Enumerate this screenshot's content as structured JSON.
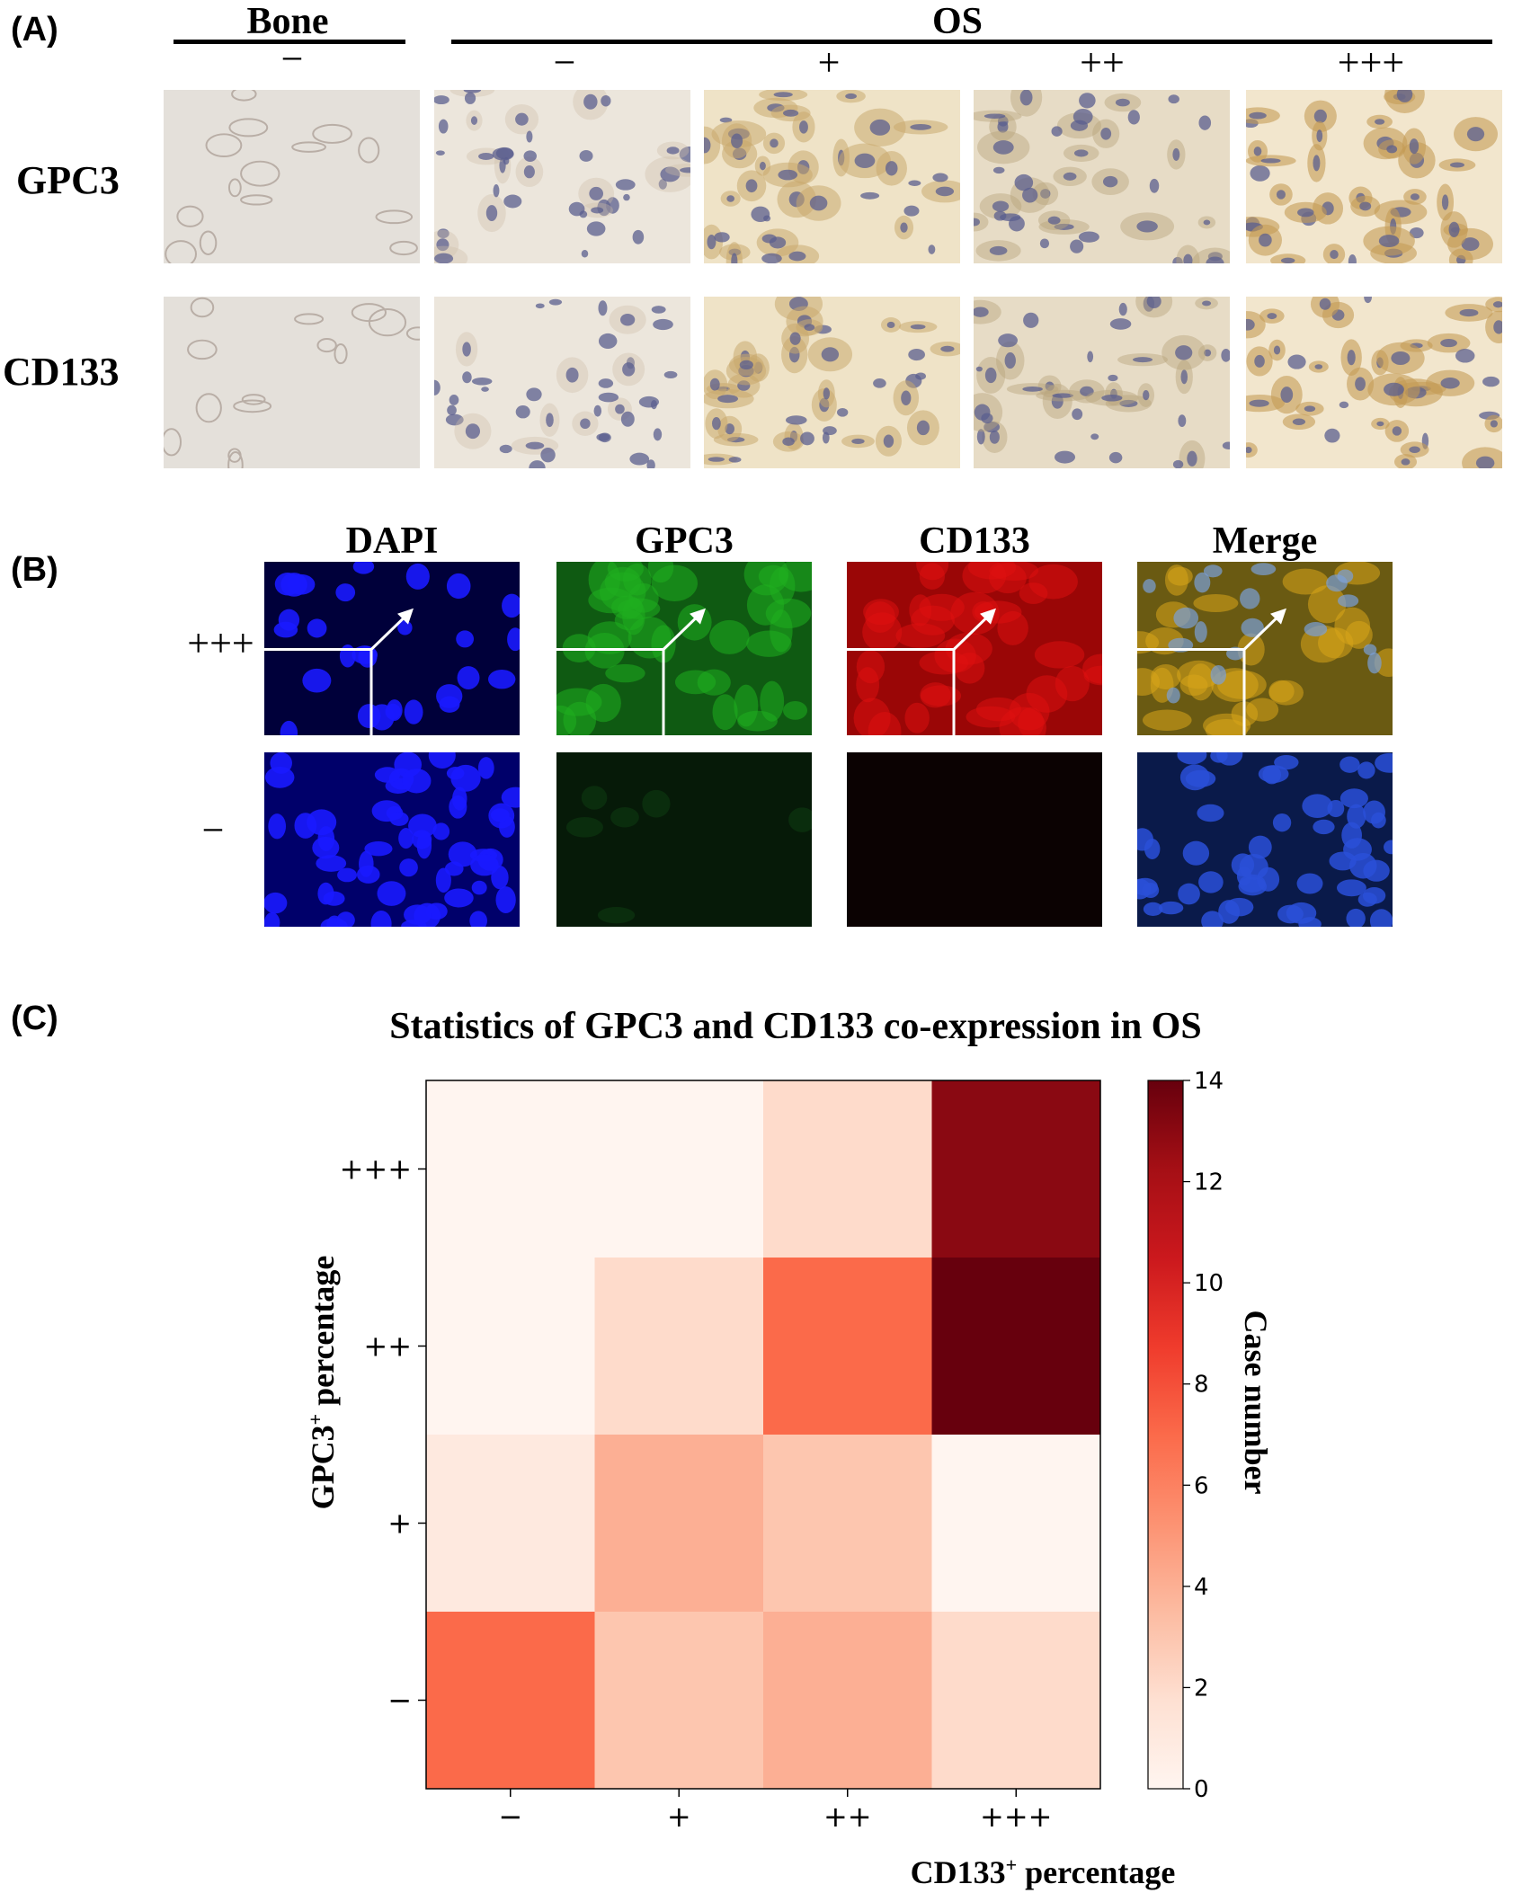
{
  "panel_a": {
    "letter": "(A)",
    "group_bone": "Bone",
    "group_os": "OS",
    "bone_level": "−",
    "os_levels": [
      "−",
      "+",
      "++",
      "+++"
    ],
    "rows": [
      "GPC3",
      "CD133"
    ]
  },
  "panel_b": {
    "letter": "(B)",
    "channels": [
      "DAPI",
      "GPC3",
      "CD133",
      "Merge"
    ],
    "rows": [
      "+++",
      "−"
    ],
    "colors": {
      "dapi": "#1a1aff",
      "gpc3": "#1fae1f",
      "cd133": "#e01010"
    }
  },
  "panel_c": {
    "letter": "(C)",
    "title": "Statistics of GPC3 and CD133 co-expression in OS",
    "xlabel": "CD133",
    "xlabel_sup": "+",
    "xlabel_rest": " percentage",
    "ylabel": "GPC3",
    "ylabel_sup": "+",
    "ylabel_rest": " percentage",
    "colorbar_label": "Case number"
  },
  "chart_data": {
    "type": "heatmap",
    "title": "Statistics of GPC3 and CD133 co-expression in OS",
    "xlabel": "CD133+ percentage",
    "ylabel": "GPC3+ percentage",
    "x_categories": [
      "−",
      "+",
      "++",
      "+++"
    ],
    "y_categories": [
      "+++",
      "++",
      "+",
      "−"
    ],
    "values": [
      [
        0,
        0,
        2,
        13
      ],
      [
        0,
        2,
        7,
        14
      ],
      [
        1,
        4,
        3,
        0
      ],
      [
        7,
        3,
        4,
        2
      ]
    ],
    "colorbar": {
      "label": "Case number",
      "min": 0,
      "max": 14,
      "ticks": [
        "0",
        "2",
        "4",
        "6",
        "8",
        "10",
        "12",
        "14"
      ]
    },
    "colormap": [
      "#fff5f0",
      "#fee0d2",
      "#fcbba1",
      "#fc9272",
      "#fb6a4a",
      "#ef3b2c",
      "#cb181d",
      "#a50f15",
      "#67000d"
    ]
  }
}
